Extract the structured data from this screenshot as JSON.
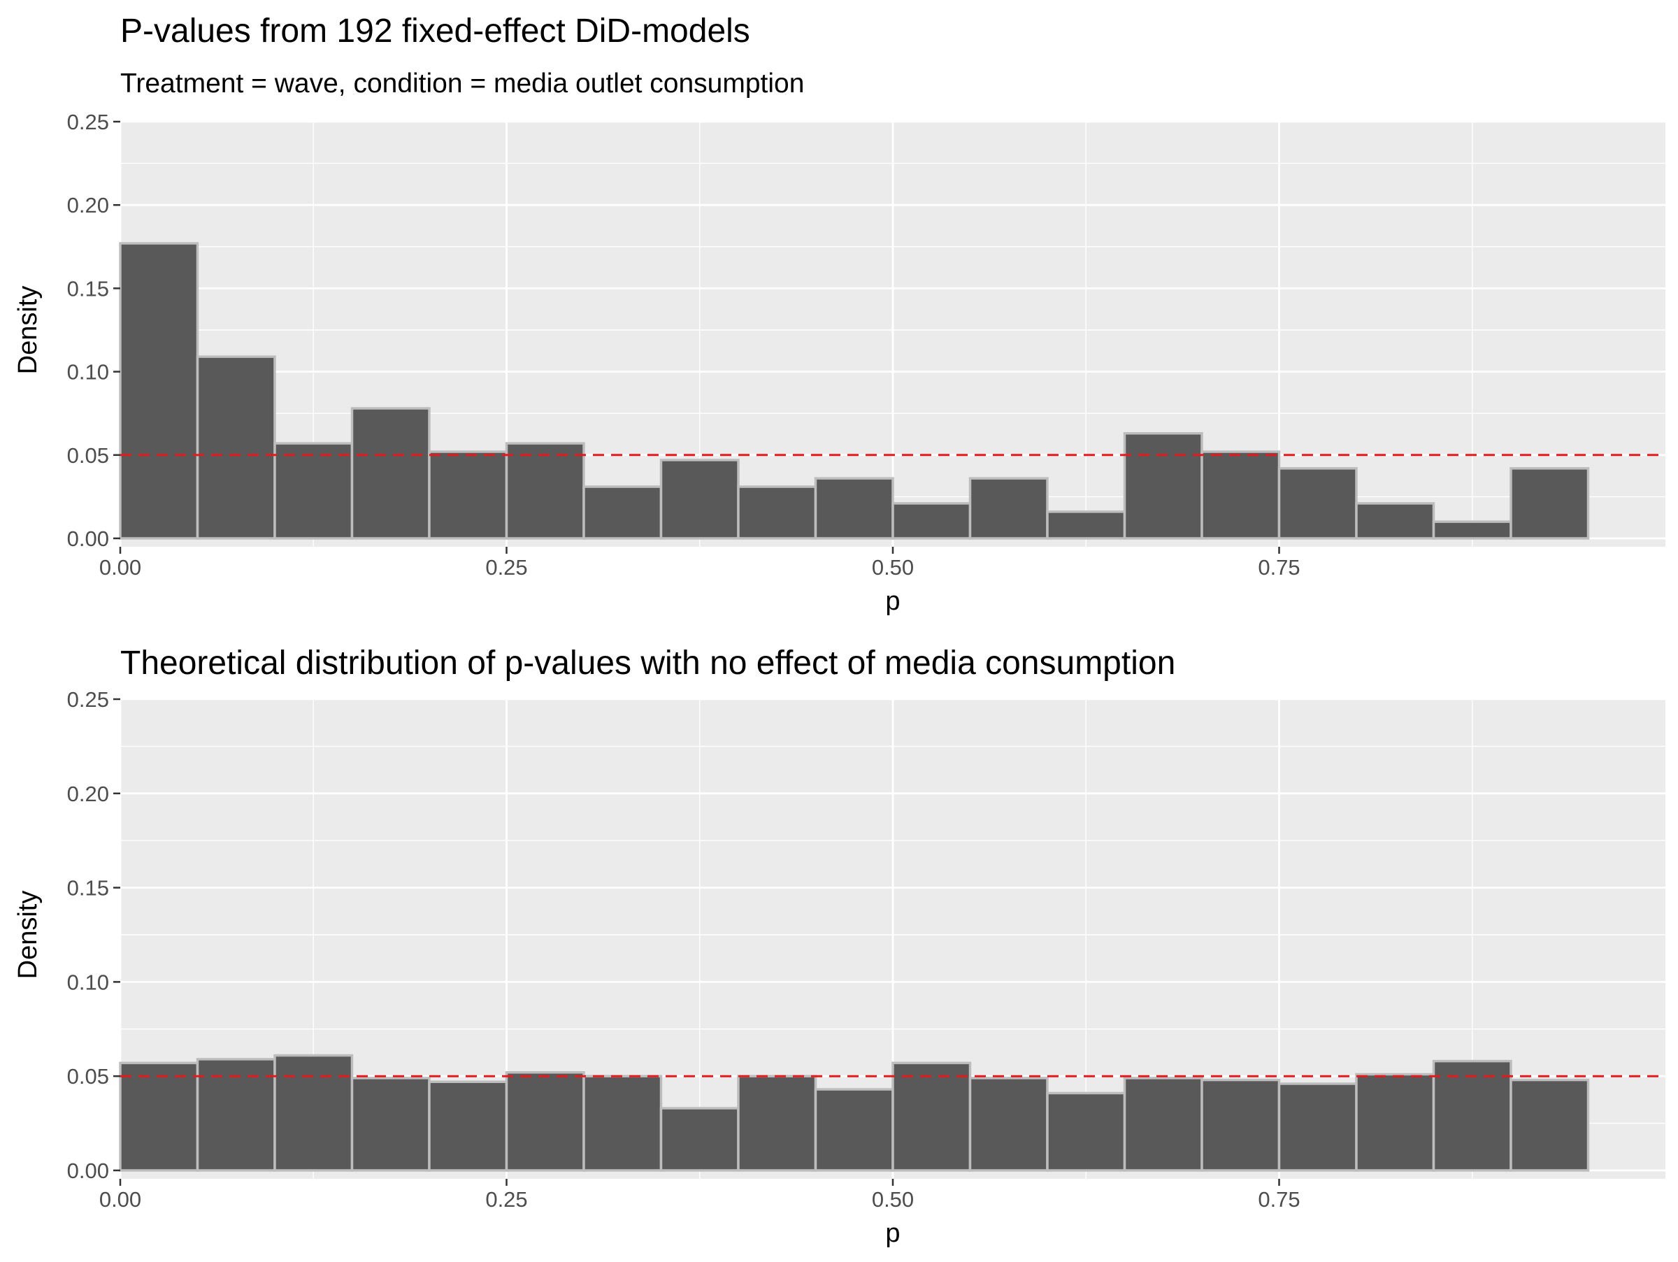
{
  "chart_data": [
    {
      "type": "bar",
      "title": "P-values from 192 fixed-effect DiD-models",
      "subtitle": "Treatment = wave, condition = media outlet consumption",
      "xlabel": "p",
      "ylabel": "Density",
      "xlim": [
        0,
        1
      ],
      "ylim": [
        0,
        0.25
      ],
      "x_ticks": [
        "0.00",
        "0.25",
        "0.50",
        "0.75"
      ],
      "y_ticks": [
        "0.00",
        "0.05",
        "0.10",
        "0.15",
        "0.20",
        "0.25"
      ],
      "bin_width": 0.05,
      "bin_starts": [
        0.0,
        0.05,
        0.1,
        0.15,
        0.2,
        0.25,
        0.3,
        0.35,
        0.4,
        0.45,
        0.5,
        0.55,
        0.6,
        0.65,
        0.7,
        0.75,
        0.8,
        0.85,
        0.9
      ],
      "values": [
        0.177,
        0.109,
        0.057,
        0.078,
        0.052,
        0.057,
        0.031,
        0.047,
        0.031,
        0.036,
        0.021,
        0.036,
        0.016,
        0.063,
        0.052,
        0.042,
        0.021,
        0.01,
        0.042
      ],
      "reference_line": {
        "y": 0.05,
        "style": "dashed",
        "color": "#e41a1c"
      },
      "grid": true,
      "colors": {
        "bar_fill": "#595959",
        "bar_outline": "#bdbdbd",
        "panel_bg": "#ebebeb",
        "grid": "#ffffff"
      }
    },
    {
      "type": "bar",
      "title": "Theoretical distribution of p-values with no effect of media consumption",
      "subtitle": "",
      "xlabel": "p",
      "ylabel": "Density",
      "xlim": [
        0,
        1
      ],
      "ylim": [
        0,
        0.25
      ],
      "x_ticks": [
        "0.00",
        "0.25",
        "0.50",
        "0.75"
      ],
      "y_ticks": [
        "0.00",
        "0.05",
        "0.10",
        "0.15",
        "0.20",
        "0.25"
      ],
      "bin_width": 0.05,
      "bin_starts": [
        0.0,
        0.05,
        0.1,
        0.15,
        0.2,
        0.25,
        0.3,
        0.35,
        0.4,
        0.45,
        0.5,
        0.55,
        0.6,
        0.65,
        0.7,
        0.75,
        0.8,
        0.85,
        0.9
      ],
      "values": [
        0.057,
        0.059,
        0.061,
        0.049,
        0.047,
        0.052,
        0.05,
        0.033,
        0.05,
        0.043,
        0.057,
        0.049,
        0.041,
        0.049,
        0.048,
        0.046,
        0.051,
        0.058,
        0.048
      ],
      "reference_line": {
        "y": 0.05,
        "style": "dashed",
        "color": "#e41a1c"
      },
      "grid": true,
      "colors": {
        "bar_fill": "#595959",
        "bar_outline": "#bdbdbd",
        "panel_bg": "#ebebeb",
        "grid": "#ffffff"
      }
    }
  ]
}
